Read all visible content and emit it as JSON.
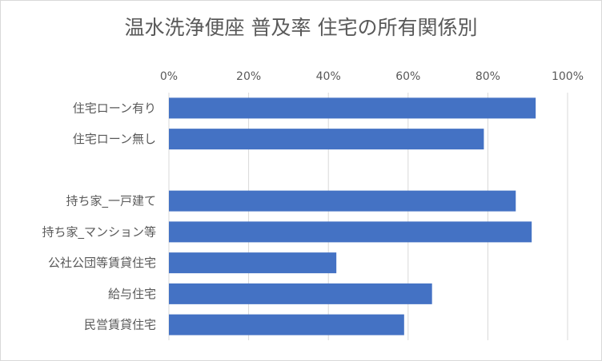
{
  "chart_data": {
    "type": "bar",
    "orientation": "horizontal",
    "title": "温水洗浄便座 普及率 住宅の所有関係別",
    "categories": [
      "住宅ローン有り",
      "住宅ローン無し",
      "",
      "持ち家_一戸建て",
      "持ち家_マンション等",
      "公社公団等賃貸住宅",
      "給与住宅",
      "民営賃貸住宅"
    ],
    "values": [
      92,
      79,
      null,
      87,
      91,
      42,
      66,
      59
    ],
    "xlim": [
      0,
      100
    ],
    "x_ticks": [
      "0%",
      "20%",
      "40%",
      "60%",
      "80%",
      "100%"
    ],
    "x_axis_position": "top",
    "grid": true,
    "legend": "none",
    "bar_color": "#4472c4",
    "grid_color": "#d9d9d9"
  }
}
